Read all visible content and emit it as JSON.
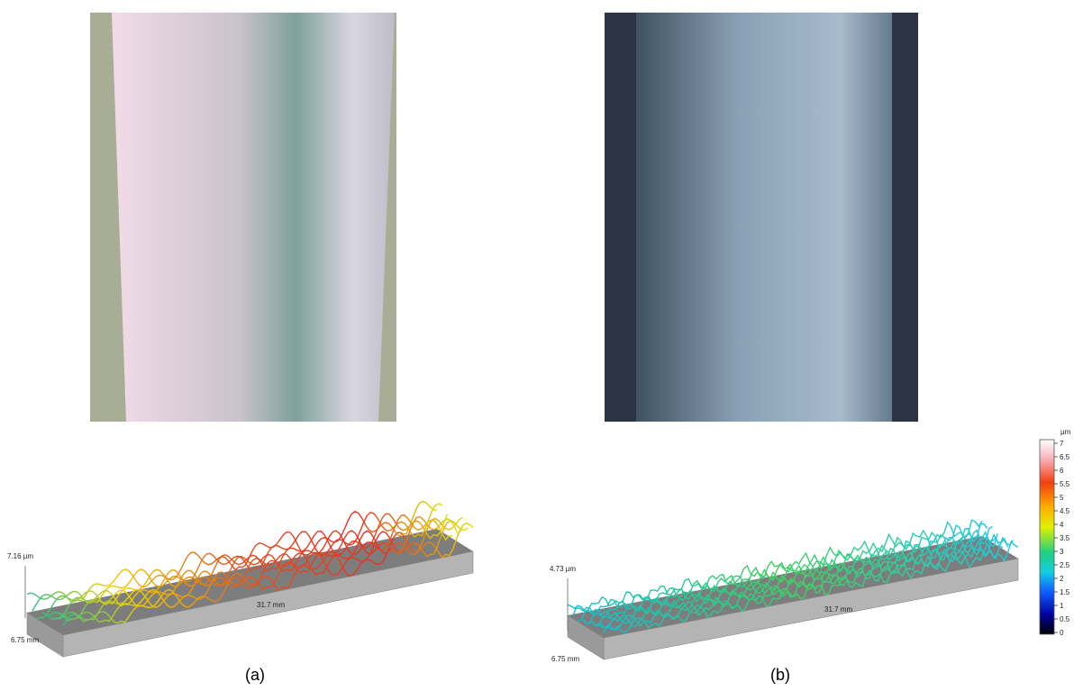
{
  "panels": [
    {
      "label": "(a)",
      "height_scale": "7.16 µm",
      "width_scale": "6.75 mm",
      "length_scale": "31.7 mm"
    },
    {
      "label": "(b)",
      "height_scale": "4.73 µm",
      "width_scale": "6.75 mm",
      "length_scale": "31.7 mm"
    }
  ],
  "colorbar": {
    "unit": "µm",
    "ticks": [
      0,
      0.5,
      1,
      1.5,
      2,
      2.5,
      3,
      3.5,
      4,
      4.5,
      5,
      5.5,
      6,
      6.5,
      7
    ]
  }
}
